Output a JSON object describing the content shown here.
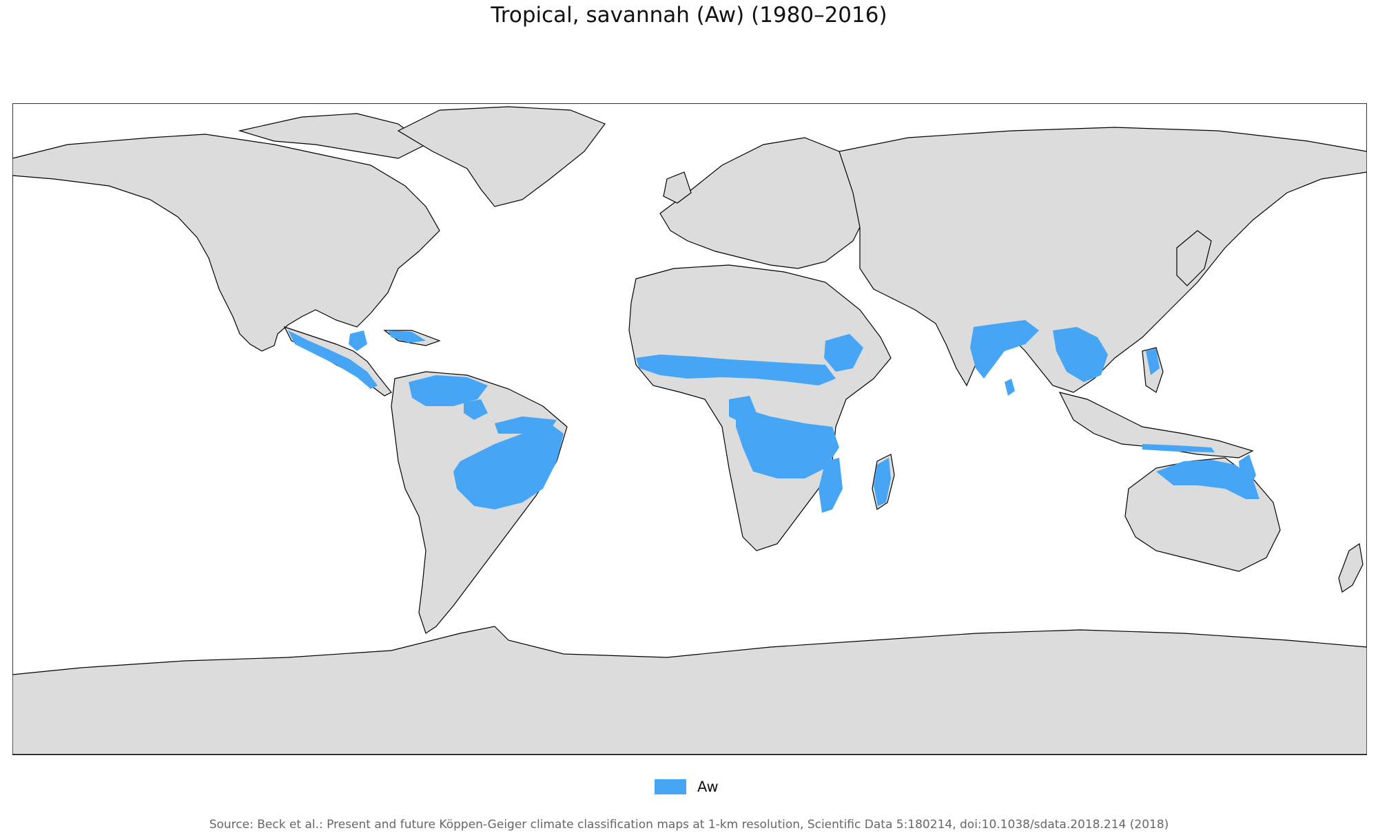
{
  "title": "Tropical, savannah (Aw) (1980–2016)",
  "legend": {
    "label": "Aw",
    "color": "#46A6F5"
  },
  "source": "Source: Beck et al.: Present and future Köppen-Geiger climate classification maps at 1-km resolution, Scientific Data 5:180214, doi:10.1038/sdata.2018.214 (2018)",
  "colors": {
    "land": "#DCDCDC",
    "ocean": "#FFFFFF",
    "border": "#000000",
    "highlight": "#46A6F5"
  },
  "map": {
    "projection": "plate-carree",
    "highlighted_class": "Aw"
  }
}
